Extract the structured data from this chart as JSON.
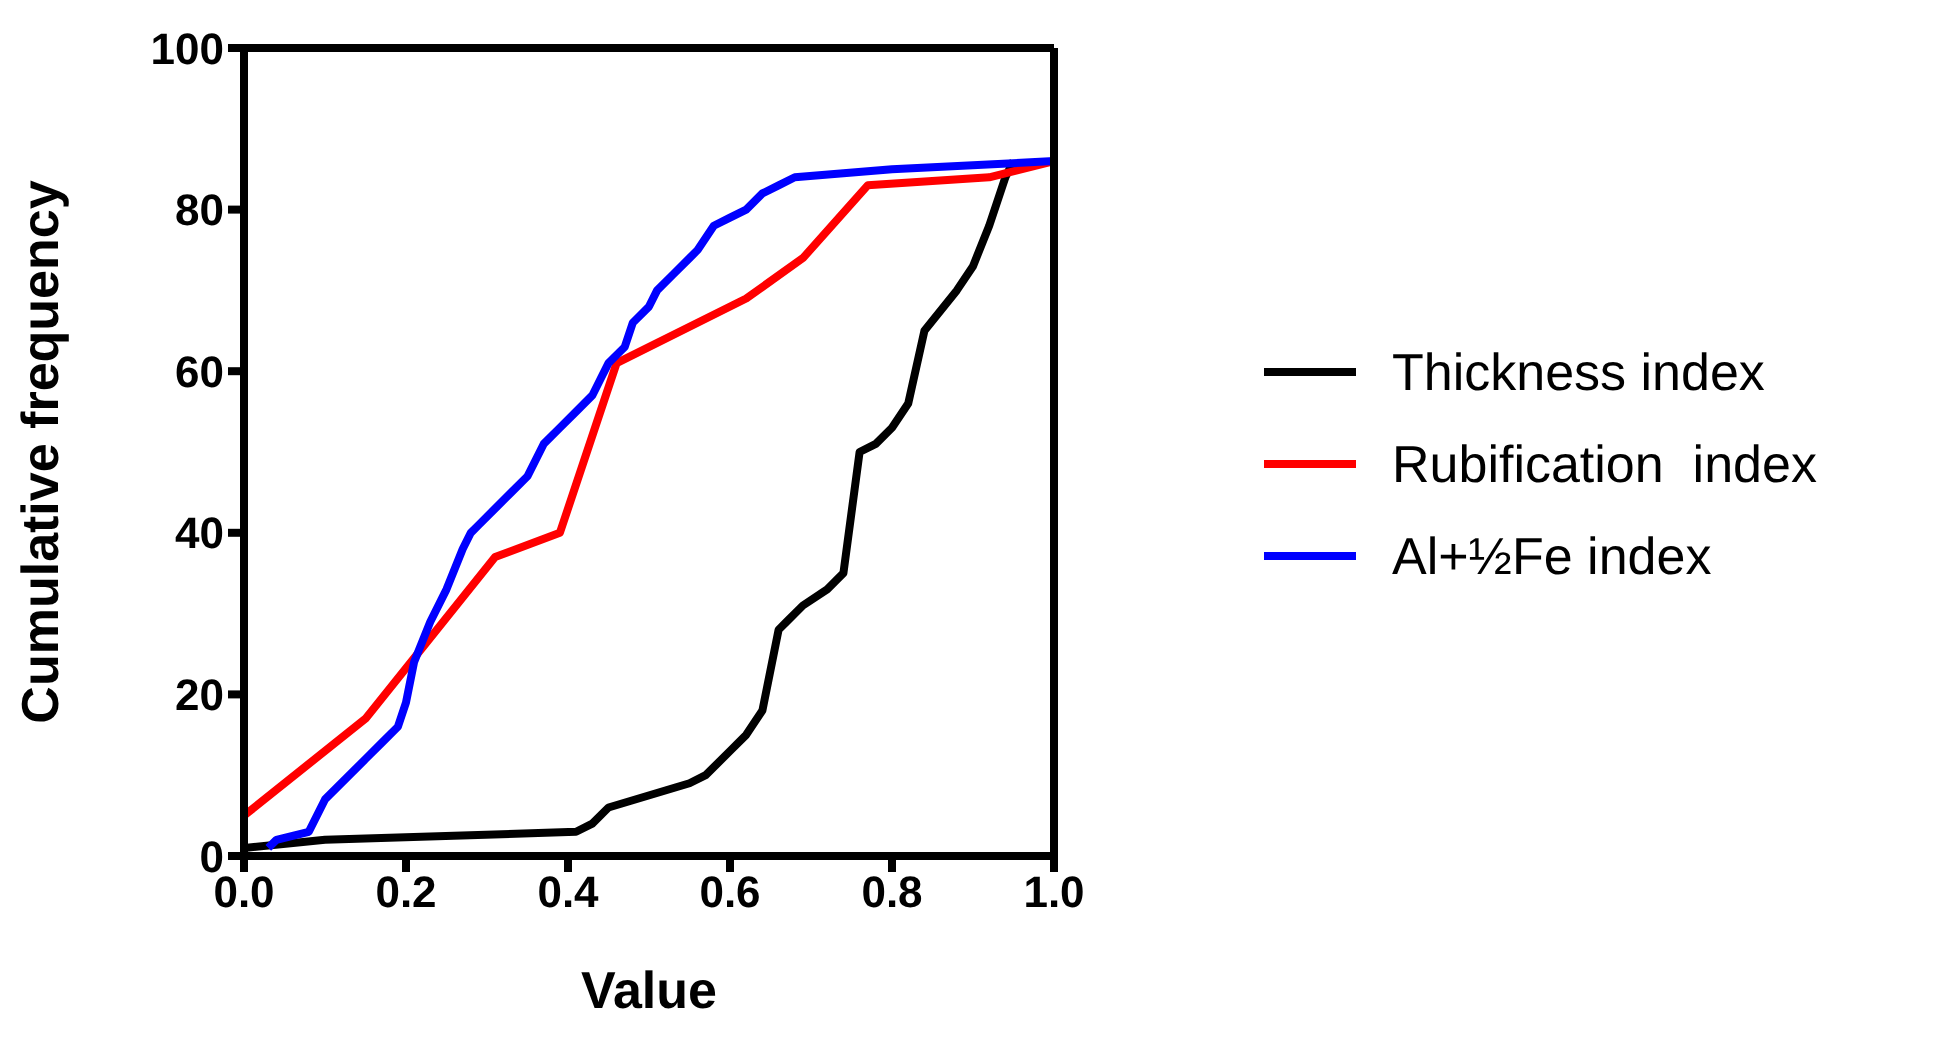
{
  "chart_data": {
    "type": "line",
    "xlabel": "Value",
    "ylabel": "Cumulative frequency",
    "xlim": [
      0,
      1
    ],
    "ylim": [
      0,
      100
    ],
    "xticks": [
      {
        "value": 0,
        "label": "0.0"
      },
      {
        "value": 0.2,
        "label": "0.2"
      },
      {
        "value": 0.4,
        "label": "0.4"
      },
      {
        "value": 0.6,
        "label": "0.6"
      },
      {
        "value": 0.8,
        "label": "0.8"
      },
      {
        "value": 1,
        "label": "1.0"
      }
    ],
    "yticks": [
      0,
      20,
      40,
      60,
      80,
      100
    ],
    "grid": false,
    "legend": "right",
    "marker": "none",
    "line_style": "solid",
    "series": [
      {
        "name": "Thickness index",
        "color": "#000000",
        "x": [
          0,
          0.1,
          0.41,
          0.43,
          0.45,
          0.55,
          0.57,
          0.6,
          0.62,
          0.64,
          0.66,
          0.67,
          0.69,
          0.72,
          0.74,
          0.76,
          0.78,
          0.8,
          0.82,
          0.84,
          0.88,
          0.9,
          0.92,
          0.94,
          0.95
        ],
        "values": [
          1,
          2,
          3,
          4,
          6,
          9,
          10,
          13,
          15,
          18,
          28,
          29,
          31,
          33,
          35,
          50,
          51,
          53,
          56,
          65,
          70,
          73,
          78,
          84,
          86
        ]
      },
      {
        "name": "Rubification  index",
        "color": "#ff0000",
        "x": [
          0,
          0.15,
          0.31,
          0.39,
          0.46,
          0.62,
          0.69,
          0.77,
          0.92,
          1
        ],
        "values": [
          5,
          17,
          37,
          40,
          61,
          69,
          74,
          83,
          84,
          86
        ]
      },
      {
        "name": "Al+½Fe index",
        "color": "#0000ff",
        "x": [
          0.03,
          0.04,
          0.08,
          0.1,
          0.15,
          0.17,
          0.19,
          0.2,
          0.21,
          0.23,
          0.25,
          0.27,
          0.28,
          0.29,
          0.33,
          0.35,
          0.37,
          0.39,
          0.41,
          0.43,
          0.44,
          0.45,
          0.46,
          0.47,
          0.48,
          0.5,
          0.51,
          0.53,
          0.55,
          0.56,
          0.58,
          0.6,
          0.62,
          0.64,
          0.66,
          0.68,
          0.8,
          1
        ],
        "values": [
          1,
          2,
          3,
          7,
          12,
          14,
          16,
          19,
          24,
          29,
          33,
          38,
          40,
          41,
          45,
          47,
          51,
          53,
          55,
          57,
          59,
          61,
          62,
          63,
          66,
          68,
          70,
          72,
          74,
          75,
          78,
          79,
          80,
          82,
          83,
          84,
          85,
          86
        ]
      }
    ]
  }
}
